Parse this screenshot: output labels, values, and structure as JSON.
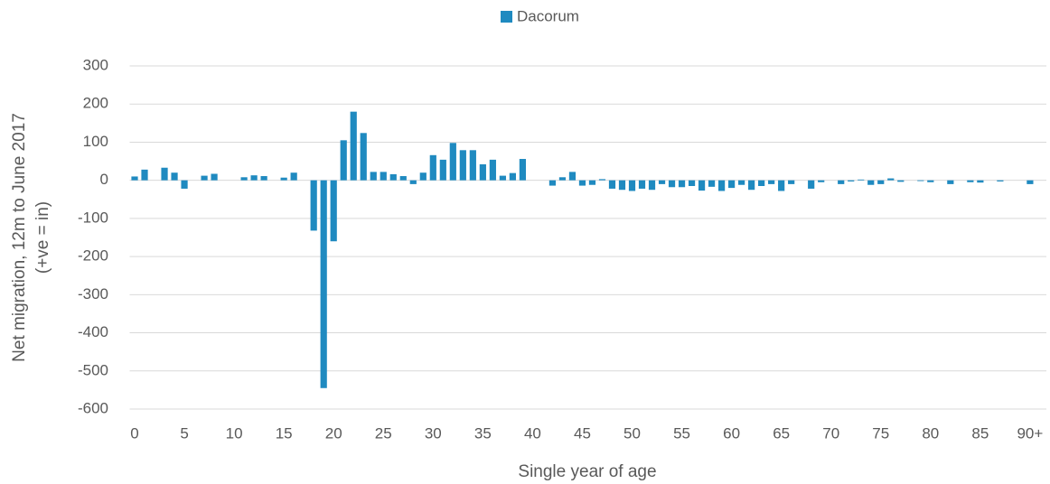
{
  "chart_data": {
    "type": "bar",
    "legend": "Dacorum",
    "color": "#1f8ac0",
    "x_label": "Single year of age",
    "y_label": [
      "Net migration, 12m to June 2017",
      "(+ve = in)"
    ],
    "categories": [
      "0",
      null,
      null,
      null,
      null,
      "5",
      null,
      null,
      null,
      null,
      "10",
      null,
      null,
      null,
      null,
      "15",
      null,
      null,
      null,
      null,
      "20",
      null,
      null,
      null,
      null,
      "25",
      null,
      null,
      null,
      null,
      "30",
      null,
      null,
      null,
      null,
      "35",
      null,
      null,
      null,
      null,
      "40",
      null,
      null,
      null,
      null,
      "45",
      null,
      null,
      null,
      null,
      "50",
      null,
      null,
      null,
      null,
      "55",
      null,
      null,
      null,
      null,
      "60",
      null,
      null,
      null,
      null,
      "65",
      null,
      null,
      null,
      null,
      "70",
      null,
      null,
      null,
      null,
      "75",
      null,
      null,
      null,
      null,
      "80",
      null,
      null,
      null,
      null,
      "85",
      null,
      null,
      null,
      null,
      "90+"
    ],
    "values": [
      10,
      28,
      0,
      33,
      20,
      -22,
      0,
      12,
      17,
      0,
      0,
      8,
      13,
      11,
      0,
      7,
      20,
      0,
      -132,
      -545,
      -160,
      105,
      180,
      124,
      22,
      22,
      16,
      11,
      -10,
      20,
      66,
      54,
      98,
      79,
      79,
      42,
      54,
      12,
      19,
      56,
      0,
      0,
      -14,
      8,
      22,
      -14,
      -12,
      3,
      -22,
      -25,
      -28,
      -22,
      -25,
      -10,
      -18,
      -18,
      -15,
      -27,
      -17,
      -28,
      -20,
      -12,
      -25,
      -15,
      -10,
      -28,
      -10,
      0,
      -22,
      -5,
      0,
      -10,
      -3,
      2,
      -12,
      -10,
      5,
      -4,
      0,
      -2,
      -5,
      0,
      -10,
      0,
      -5,
      -6,
      0,
      -3,
      0,
      0,
      -10
    ],
    "ylim": [
      -600,
      300
    ],
    "yticks": [
      -600,
      -500,
      -400,
      -300,
      -200,
      -100,
      0,
      100,
      200,
      300
    ],
    "grid": true
  }
}
